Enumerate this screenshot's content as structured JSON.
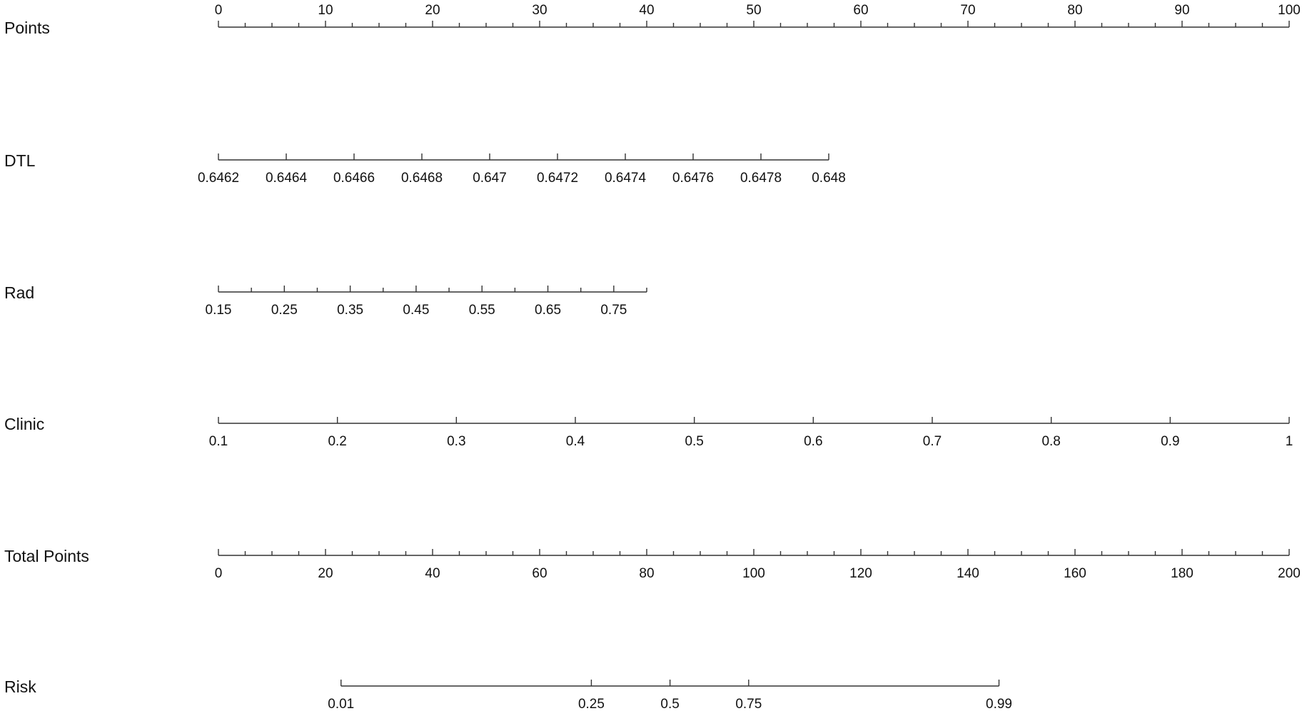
{
  "chart_data": {
    "type": "nomogram",
    "rows": [
      {
        "label": "Points",
        "xlim": [
          0,
          100
        ],
        "points_span": [
          0,
          100
        ],
        "tick_side": "top",
        "ticks": [
          0,
          10,
          20,
          30,
          40,
          50,
          60,
          70,
          80,
          90,
          100
        ],
        "minor_ticks": [
          2.5,
          5,
          7.5,
          12.5,
          15,
          17.5,
          22.5,
          25,
          27.5,
          32.5,
          35,
          37.5,
          42.5,
          45,
          47.5,
          52.5,
          55,
          57.5,
          62.5,
          65,
          67.5,
          72.5,
          75,
          77.5,
          82.5,
          85,
          87.5,
          92.5,
          95,
          97.5
        ]
      },
      {
        "label": "DTL",
        "xlim": [
          0.6462,
          0.648
        ],
        "points_span": [
          0,
          57
        ],
        "tick_side": "bottom",
        "ticks": [
          0.6462,
          0.6464,
          0.6466,
          0.6468,
          0.647,
          0.6472,
          0.6474,
          0.6476,
          0.6478,
          0.648
        ],
        "minor_ticks": []
      },
      {
        "label": "Rad",
        "xlim": [
          0.15,
          0.8
        ],
        "points_span": [
          0,
          40
        ],
        "tick_side": "bottom",
        "ticks": [
          0.15,
          0.25,
          0.35,
          0.45,
          0.55,
          0.65,
          0.75
        ],
        "minor_ticks": [
          0.2,
          0.3,
          0.4,
          0.5,
          0.6,
          0.7,
          0.8
        ]
      },
      {
        "label": "Clinic",
        "xlim": [
          0.1,
          1
        ],
        "points_span": [
          0,
          100
        ],
        "tick_side": "bottom",
        "ticks": [
          0.1,
          0.2,
          0.3,
          0.4,
          0.5,
          0.6,
          0.7,
          0.8,
          0.9,
          1
        ],
        "minor_ticks": []
      },
      {
        "label": "Total Points",
        "xlim": [
          0,
          200
        ],
        "points_span": [
          0,
          100
        ],
        "tick_side": "bottom",
        "ticks": [
          0,
          20,
          40,
          60,
          80,
          100,
          120,
          140,
          160,
          180,
          200
        ],
        "minor_ticks": [
          5,
          10,
          15,
          25,
          30,
          35,
          45,
          50,
          55,
          65,
          70,
          75,
          85,
          90,
          95,
          105,
          110,
          115,
          125,
          130,
          135,
          145,
          150,
          155,
          165,
          170,
          175,
          185,
          190,
          195
        ]
      },
      {
        "label": "Risk",
        "xlim": [
          0.01,
          0.99
        ],
        "total_points_span": [
          22.9,
          145.8
        ],
        "scale": "logit",
        "tick_side": "bottom",
        "ticks": [
          0.01,
          0.25,
          0.5,
          0.75,
          0.99
        ],
        "minor_ticks": []
      }
    ]
  }
}
